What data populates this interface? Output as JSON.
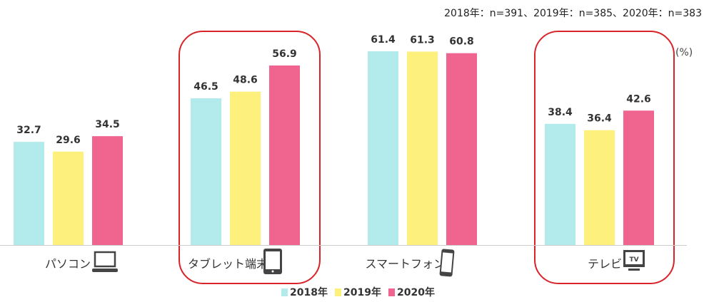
{
  "note": "2018年：n=391、2019年：n=385、2020年：n=383",
  "chart_data": {
    "type": "bar",
    "unit_label": "(%)",
    "categories": [
      "パソコン",
      "タブレット端末",
      "スマートフォン",
      "テレビ"
    ],
    "category_icons": [
      "laptop-icon",
      "tablet-icon",
      "smartphone-icon",
      "tv-icon"
    ],
    "tv_icon_text": "TV",
    "series": [
      {
        "name": "2018年",
        "color": "#b3eaec",
        "values": [
          32.7,
          46.5,
          61.4,
          38.4
        ]
      },
      {
        "name": "2019年",
        "color": "#fdf07c",
        "values": [
          29.6,
          48.6,
          61.3,
          36.4
        ]
      },
      {
        "name": "2020年",
        "color": "#ef6590",
        "values": [
          34.5,
          56.9,
          60.8,
          42.6
        ]
      }
    ],
    "highlighted_categories": [
      "タブレット端末",
      "テレビ"
    ],
    "ylim": [
      0,
      64
    ],
    "legend_position": "bottom"
  }
}
